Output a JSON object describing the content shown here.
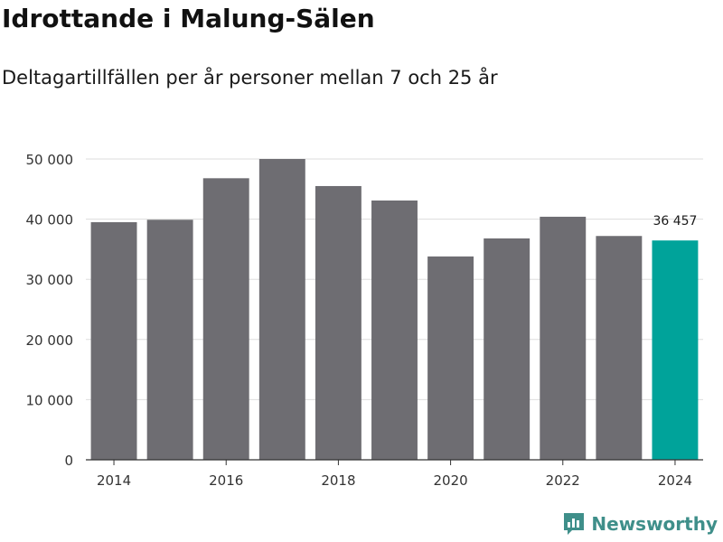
{
  "header": {
    "title": "Idrottande i Malung-Sälen",
    "subtitle": "Deltagartillfällen per år personer mellan 7 och 25 år"
  },
  "brand": {
    "name": "Newsworthy",
    "icon": "newsworthy-logo-icon"
  },
  "colors": {
    "bar": "#6e6d72",
    "highlight": "#00a39a",
    "grid": "#dddddd",
    "axis": "#333333",
    "text": "#333333"
  },
  "chart_data": {
    "type": "bar",
    "x": [
      2014,
      2015,
      2016,
      2017,
      2018,
      2019,
      2020,
      2021,
      2022,
      2023,
      2024
    ],
    "values": [
      39500,
      39900,
      46800,
      50000,
      45500,
      43100,
      33800,
      36800,
      40400,
      37200,
      36457
    ],
    "highlight_index": 10,
    "data_labels": [
      {
        "index": 10,
        "text": "36 457"
      }
    ],
    "x_ticks": [
      "2014",
      "2016",
      "2018",
      "2020",
      "2022",
      "2024"
    ],
    "y_ticks": [
      {
        "value": 0,
        "label": "0"
      },
      {
        "value": 10000,
        "label": "10 000"
      },
      {
        "value": 20000,
        "label": "20 000"
      },
      {
        "value": 30000,
        "label": "30 000"
      },
      {
        "value": 40000,
        "label": "40 000"
      },
      {
        "value": 50000,
        "label": "50 000"
      }
    ],
    "ylim": [
      0,
      50000
    ],
    "grid": true,
    "legend": "none"
  }
}
